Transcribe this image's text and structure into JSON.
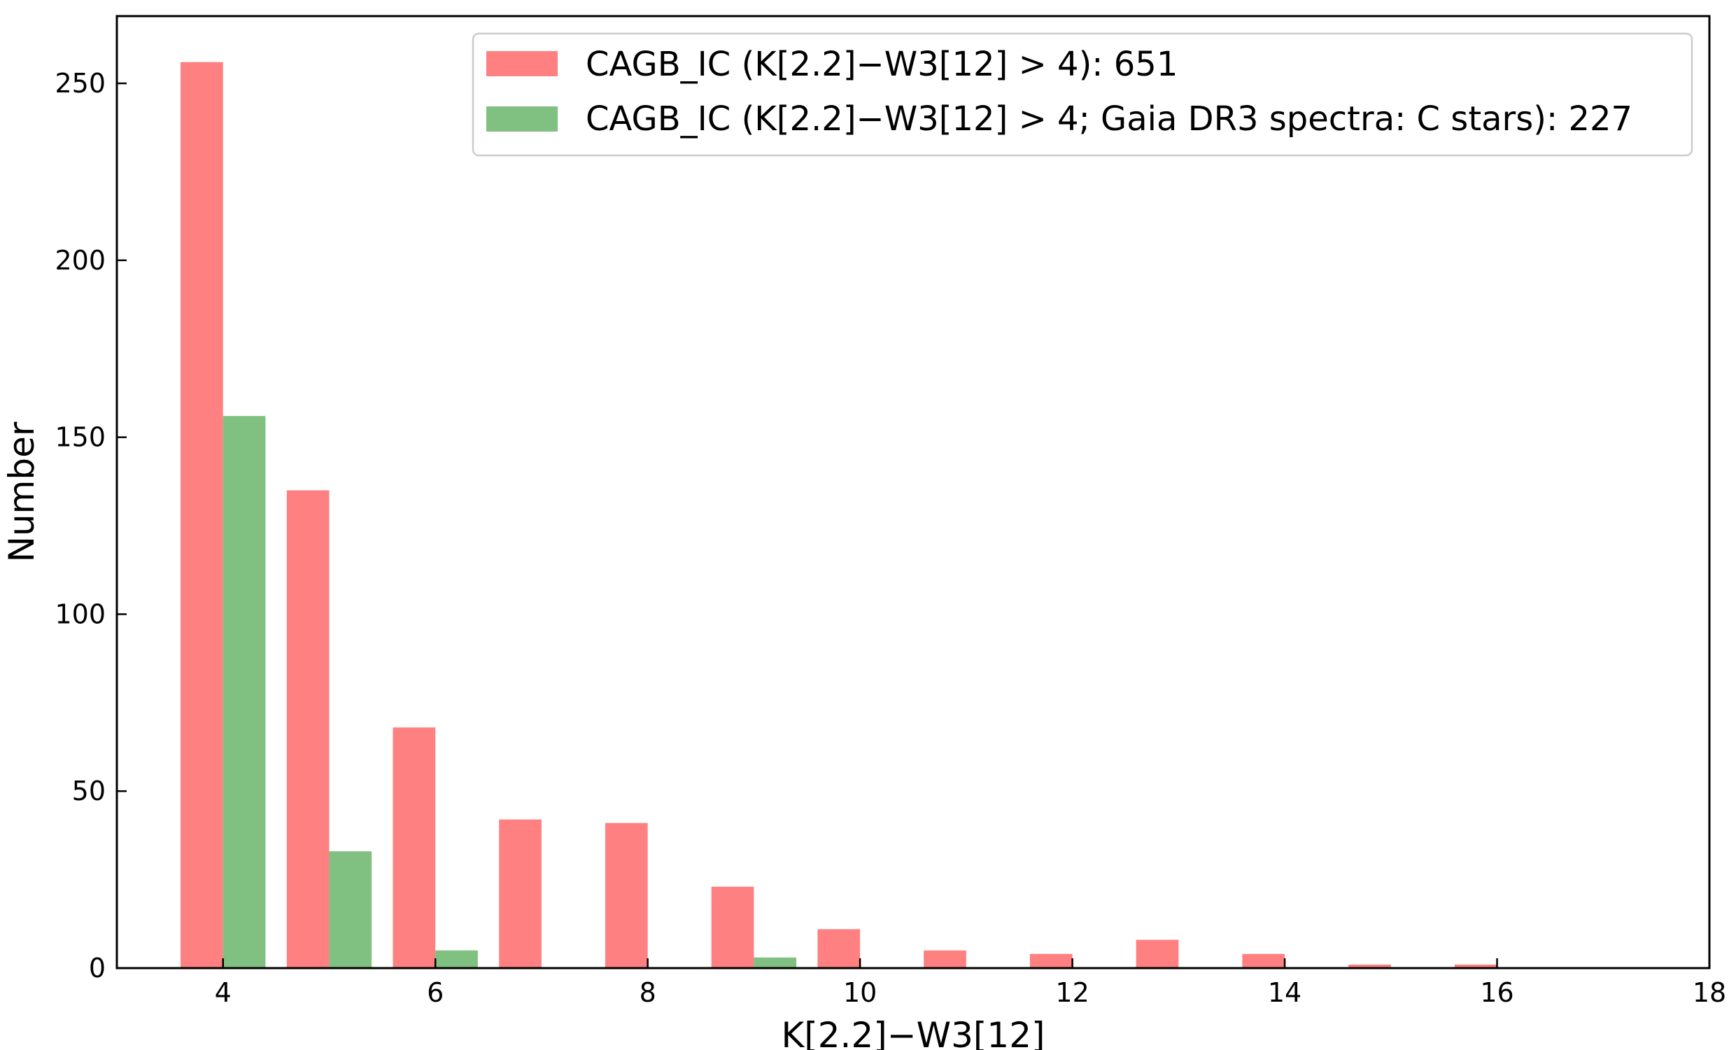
{
  "chart_data": {
    "type": "bar",
    "xlabel": "K[2.2]−W3[12]",
    "ylabel": "Number",
    "xlim": [
      3,
      18
    ],
    "ylim": [
      0,
      269
    ],
    "xticks": [
      4,
      6,
      8,
      10,
      12,
      14,
      16,
      18
    ],
    "yticks": [
      0,
      50,
      100,
      150,
      200,
      250
    ],
    "grid": false,
    "legend_position": "top-right",
    "bin_width": 1,
    "bar_width": 0.4,
    "x": [
      4,
      5,
      6,
      7,
      8,
      9,
      10,
      11,
      12,
      13,
      14,
      15,
      16
    ],
    "series": [
      {
        "name": "CAGB_IC (K[2.2]−W3[12] > 4): 651",
        "color": "#ff8080",
        "offset": -0.2,
        "values": [
          256,
          135,
          68,
          42,
          41,
          23,
          11,
          5,
          4,
          8,
          4,
          1,
          1
        ]
      },
      {
        "name": "CAGB_IC (K[2.2]−W3[12] > 4; Gaia DR3 spectra: C stars): 227",
        "color": "#80c080",
        "offset": 0.2,
        "values": [
          156,
          33,
          5,
          0,
          0,
          3,
          0,
          0,
          0,
          0,
          0,
          0,
          0
        ]
      }
    ]
  }
}
